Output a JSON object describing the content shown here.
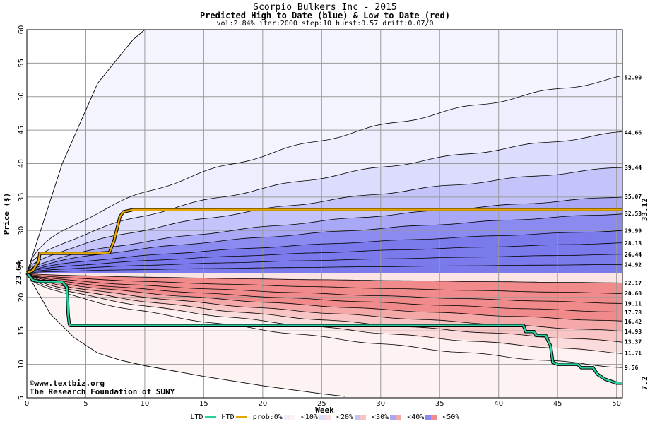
{
  "header": {
    "title": "Scorpio Bulkers Inc - 2015",
    "subtitle": "Predicted High to Date (blue) &  Low to Date (red)",
    "params": "vol:2.84% iter:2000 step:10 hurst:0.57 drift:0.07/0"
  },
  "chart_data": {
    "type": "area",
    "xlabel": "Week",
    "ylabel": "Price ($)",
    "xlim": [
      0,
      50.5
    ],
    "ylim": [
      5,
      60
    ],
    "x_ticks": [
      "0",
      "5",
      "10",
      "15",
      "20",
      "25",
      "30",
      "35",
      "40",
      "45",
      "50"
    ],
    "y_ticks": [
      "5",
      "10",
      "15",
      "20",
      "25",
      "30",
      "35",
      "40",
      "45",
      "50",
      "55",
      "60"
    ],
    "grid": true,
    "start_price": "23.64",
    "htd_end_label": "33.12",
    "ltd_end_label": "7.2",
    "band_levels": [
      "52.90",
      "44.66",
      "39.44",
      "35.07",
      "32.53",
      "29.99",
      "28.13",
      "26.44",
      "24.92",
      "22.17",
      "20.60",
      "19.11",
      "17.78",
      "16.42",
      "14.93",
      "13.37",
      "11.71",
      "9.56"
    ],
    "high_bands": [
      {
        "prob": "10%",
        "end": 52.9
      },
      {
        "prob": "20%",
        "end": 44.66
      },
      {
        "prob": "30%",
        "end": 39.44
      },
      {
        "prob": "40%",
        "end": 35.07
      },
      {
        "prob": "50%",
        "end": 32.53
      }
    ],
    "high_inner": [
      29.99,
      28.13,
      26.44,
      24.92
    ],
    "low_bands": [
      {
        "prob": "10%",
        "end": 9.56
      },
      {
        "prob": "20%",
        "end": 11.71
      },
      {
        "prob": "30%",
        "end": 13.37
      },
      {
        "prob": "40%",
        "end": 14.93
      },
      {
        "prob": "50%",
        "end": 16.42
      }
    ],
    "low_inner": [
      22.17,
      20.6,
      19.11,
      17.78
    ],
    "outer_high": {
      "x": [
        0,
        3,
        6,
        9,
        10
      ],
      "y": [
        23.64,
        40,
        52,
        58.5,
        60
      ]
    },
    "outer_low": {
      "x": [
        0,
        2,
        4,
        6,
        8,
        10,
        15,
        20,
        25,
        27
      ],
      "y": [
        23.64,
        17.5,
        14,
        11.7,
        10.6,
        9.8,
        8.2,
        6.8,
        5.6,
        5.2
      ]
    },
    "htd_series": {
      "name": "HTD",
      "x": [
        0,
        0.5,
        1,
        1.1,
        4,
        6,
        7,
        7.4,
        7.9,
        8.2,
        9,
        20,
        30,
        40,
        50.5
      ],
      "y": [
        23.64,
        24,
        25.4,
        26.6,
        26.6,
        26.6,
        26.7,
        28.5,
        32.1,
        32.8,
        33.1,
        33.12,
        33.12,
        33.12,
        33.12
      ]
    },
    "ltd_series": {
      "name": "LTD",
      "x": [
        0,
        0.5,
        1,
        2,
        3,
        3.4,
        3.5,
        3.6,
        3.7,
        25,
        40,
        42.1,
        42.3,
        43,
        43.2,
        44,
        44.2,
        44.4,
        44.6,
        45,
        46.7,
        47,
        48,
        48.4,
        49,
        50,
        50.5
      ],
      "y": [
        23.64,
        22.6,
        22.4,
        22.4,
        22.3,
        21.5,
        17.5,
        16.0,
        15.8,
        15.8,
        15.8,
        15.8,
        14.9,
        14.9,
        14.3,
        14.3,
        13.5,
        12.8,
        10.3,
        10.0,
        10.0,
        9.5,
        9.5,
        8.5,
        7.8,
        7.2,
        7.2
      ]
    },
    "legend": {
      "ltd": "LTD",
      "htd": "HTD",
      "prob": "prob:0%",
      "p10": "<10%",
      "p20": "<20%",
      "p30": "<30%",
      "p40": "<40%",
      "p50": "<50%"
    },
    "colors": {
      "htd": "#e6a800",
      "ltd": "#2ad1a0",
      "blue": [
        "#eeeefe",
        "#dcdcfc",
        "#c4c4fa",
        "#a8a8f6",
        "#8a8af0"
      ],
      "red": [
        "#fdf1f1",
        "#fbdcdc",
        "#f8c4c4",
        "#f5a8a8",
        "#f18a8a"
      ]
    }
  },
  "credits": {
    "site": "©www.textbiz.org",
    "org": "The Research Foundation of SUNY"
  }
}
